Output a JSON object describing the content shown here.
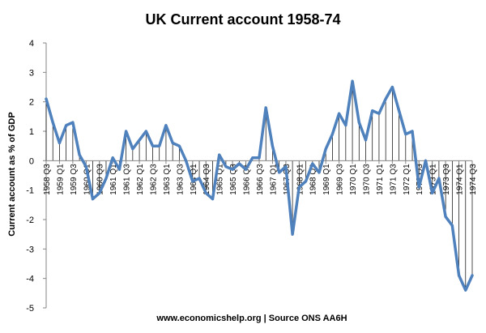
{
  "chart_data": {
    "type": "line",
    "title": "UK Current account  1958-74",
    "ylabel": "Current account as % of GDP",
    "xlabel": "",
    "footer": "www.economicshelp.org | Source ONS AA6H",
    "ylim": [
      -5,
      4
    ],
    "yticks": [
      4,
      3,
      2,
      1,
      0,
      -1,
      -2,
      -3,
      -4,
      -5
    ],
    "grid": false,
    "drop_lines": true,
    "colors": {
      "line": "#4f81bd",
      "drop_line": "#000000",
      "axis": "#868686"
    },
    "x_tick_labels": [
      "1958 Q3",
      "1959 Q1",
      "1959 Q3",
      "1960 Q1",
      "1960 Q3",
      "1961 Q1",
      "1961 Q3",
      "1962 Q1",
      "1962 Q3",
      "1963 Q1",
      "1963 Q3",
      "1964 Q1",
      "1964 Q3",
      "1965 Q1",
      "1965 Q3",
      "1966 Q1",
      "1966 Q3",
      "1967 Q1",
      "1967 Q3",
      "1968 Q1",
      "1968 Q3",
      "1969 Q1",
      "1969 Q3",
      "1970 Q1",
      "1970 Q3",
      "1971 Q1",
      "1971 Q3",
      "1972 Q1",
      "1972 Q3",
      "1973 Q1",
      "1973 Q3",
      "1974 Q1",
      "1974 Q3"
    ],
    "x": [
      "1958 Q3",
      "1958 Q4",
      "1959 Q1",
      "1959 Q2",
      "1959 Q3",
      "1959 Q4",
      "1960 Q1",
      "1960 Q2",
      "1960 Q3",
      "1960 Q4",
      "1961 Q1",
      "1961 Q2",
      "1961 Q3",
      "1961 Q4",
      "1962 Q1",
      "1962 Q2",
      "1962 Q3",
      "1962 Q4",
      "1963 Q1",
      "1963 Q2",
      "1963 Q3",
      "1963 Q4",
      "1964 Q1",
      "1964 Q2",
      "1964 Q3",
      "1964 Q4",
      "1965 Q1",
      "1965 Q2",
      "1965 Q3",
      "1965 Q4",
      "1966 Q1",
      "1966 Q2",
      "1966 Q3",
      "1966 Q4",
      "1967 Q1",
      "1967 Q2",
      "1967 Q3",
      "1967 Q4",
      "1968 Q1",
      "1968 Q2",
      "1968 Q3",
      "1968 Q4",
      "1969 Q1",
      "1969 Q2",
      "1969 Q3",
      "1969 Q4",
      "1970 Q1",
      "1970 Q2",
      "1970 Q3",
      "1970 Q4",
      "1971 Q1",
      "1971 Q2",
      "1971 Q3",
      "1971 Q4",
      "1972 Q1",
      "1972 Q2",
      "1972 Q3",
      "1972 Q4",
      "1973 Q1",
      "1973 Q2",
      "1973 Q3",
      "1973 Q4",
      "1974 Q1",
      "1974 Q2",
      "1974 Q3"
    ],
    "values": [
      2.1,
      1.3,
      0.6,
      1.2,
      1.3,
      0.2,
      -0.2,
      -1.3,
      -1.1,
      -0.6,
      0.1,
      -0.3,
      1.0,
      0.4,
      0.7,
      1.0,
      0.5,
      0.5,
      1.2,
      0.6,
      0.5,
      0.0,
      -0.7,
      -0.6,
      -1.1,
      -1.3,
      0.2,
      -0.2,
      -0.3,
      -0.1,
      -0.3,
      0.1,
      0.1,
      1.8,
      0.5,
      -0.4,
      -0.2,
      -2.5,
      -0.9,
      -0.7,
      -0.1,
      -0.4,
      0.4,
      0.9,
      1.6,
      1.2,
      2.7,
      1.3,
      0.7,
      1.7,
      1.6,
      2.1,
      2.5,
      1.7,
      0.9,
      1.0,
      -0.9,
      0.0,
      -1.1,
      -0.6,
      -1.9,
      -2.2,
      -3.9,
      -4.4,
      -3.9
    ]
  }
}
